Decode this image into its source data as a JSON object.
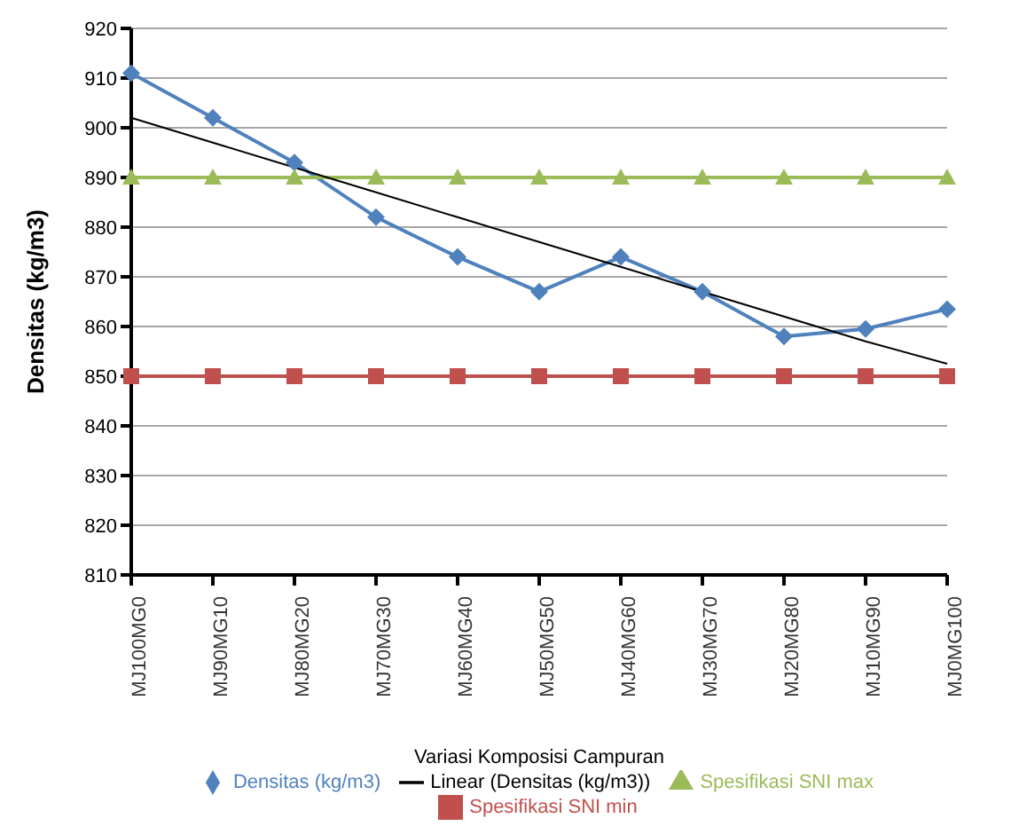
{
  "chart_data": {
    "type": "line",
    "xlabel": "Variasi Komposisi Campuran",
    "ylabel": "Densitas (kg/m3)",
    "categories": [
      "MJ100MG0",
      "MJ90MG10",
      "MJ80MG20",
      "MJ70MG30",
      "MJ60MG40",
      "MJ50MG50",
      "MJ40MG60",
      "MJ30MG70",
      "MJ20MG80",
      "MJ10MG90",
      "MJ0MG100"
    ],
    "series": [
      {
        "name": "Densitas (kg/m3)",
        "color": "#4f81bd",
        "marker": "diamond",
        "values": [
          911,
          902,
          893,
          882,
          874,
          867,
          874,
          867,
          858,
          859.5,
          863.5
        ]
      },
      {
        "name": "Spesifikasi SNI min",
        "color": "#c0504d",
        "marker": "square",
        "values": [
          850,
          850,
          850,
          850,
          850,
          850,
          850,
          850,
          850,
          850,
          850
        ]
      },
      {
        "name": "Spesifikasi SNI max",
        "color": "#9bbb59",
        "marker": "triangle",
        "values": [
          890,
          890,
          890,
          890,
          890,
          890,
          890,
          890,
          890,
          890,
          890
        ]
      },
      {
        "name": "Linear (Densitas (kg/m3))",
        "color": "#000000",
        "marker": "none",
        "values": [
          902,
          897,
          892,
          887,
          882,
          877,
          872,
          867,
          862,
          857,
          852.5
        ]
      }
    ],
    "ylim": [
      810,
      920
    ],
    "yticks": [
      810,
      820,
      830,
      840,
      850,
      860,
      870,
      880,
      890,
      900,
      910,
      920
    ],
    "grid": "y",
    "legend": "bottom"
  }
}
